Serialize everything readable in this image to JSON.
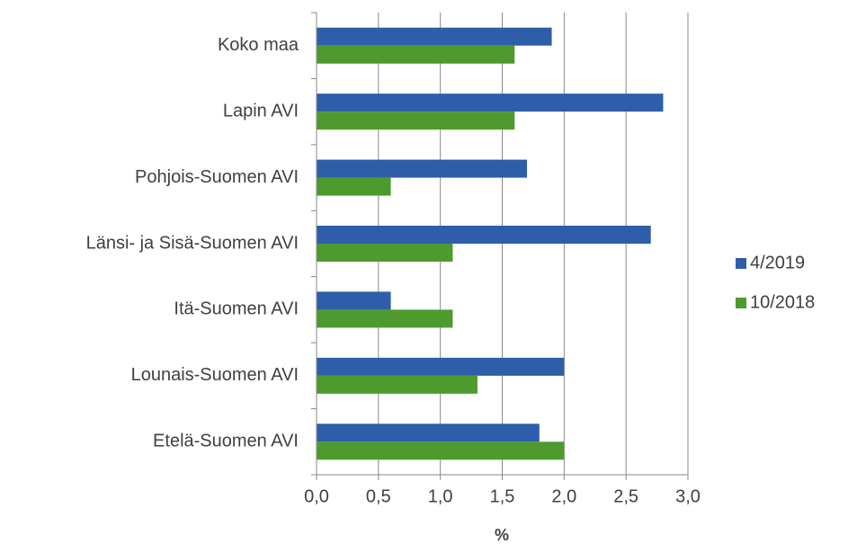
{
  "chart_data": {
    "type": "hbar",
    "categories": [
      "Koko maa",
      "Lapin AVI",
      "Pohjois-Suomen AVI",
      "Länsi- ja Sisä-Suomen AVI",
      "Itä-Suomen AVI",
      "Lounais-Suomen AVI",
      "Etelä-Suomen AVI"
    ],
    "series": [
      {
        "name": "4/2019",
        "color": "#2e5eaa",
        "values": [
          1.9,
          2.8,
          1.7,
          2.7,
          0.6,
          2.0,
          1.8
        ]
      },
      {
        "name": "10/2018",
        "color": "#4e9a2e",
        "values": [
          1.6,
          1.6,
          0.6,
          1.1,
          1.1,
          1.3,
          2.0
        ]
      }
    ],
    "xlabel": "%",
    "xlim": [
      0,
      3
    ],
    "xticks": [
      {
        "value": 0,
        "label": "0,0"
      },
      {
        "value": 0.5,
        "label": "0,5"
      },
      {
        "value": 1,
        "label": "1,0"
      },
      {
        "value": 1.5,
        "label": "1,5"
      },
      {
        "value": 2,
        "label": "2,0"
      },
      {
        "value": 2.5,
        "label": "2,5"
      },
      {
        "value": 3,
        "label": "3,0"
      }
    ],
    "grid": true,
    "legend": "right"
  }
}
